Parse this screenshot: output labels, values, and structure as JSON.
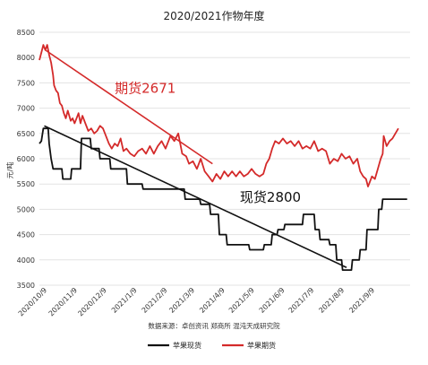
{
  "chart_data": {
    "type": "line",
    "title": "2020/2021作物年度",
    "ylabel": "元/吨",
    "ylim": [
      3500,
      8500
    ],
    "yticks": [
      3500,
      4000,
      4500,
      5000,
      5500,
      6000,
      6500,
      7000,
      7500,
      8000,
      8500
    ],
    "xlim": [
      "2020-10-01",
      "2021-10-15"
    ],
    "xticks": [
      "2020/10/9",
      "2020/11/9",
      "2020/12/9",
      "2021/1/9",
      "2021/2/9",
      "2021/3/9",
      "2021/4/9",
      "2021/5/9",
      "2021/6/9",
      "2021/7/9",
      "2021/8/9",
      "2021/9/9"
    ],
    "grid": "horizontal",
    "legend_position": "bottom",
    "series": [
      {
        "name": "苹果现货",
        "color": "#111111",
        "points": [
          [
            "2020-10-01",
            6300
          ],
          [
            "2020-10-03",
            6350
          ],
          [
            "2020-10-05",
            6600
          ],
          [
            "2020-10-10",
            6600
          ],
          [
            "2020-10-11",
            6300
          ],
          [
            "2020-10-13",
            6000
          ],
          [
            "2020-10-15",
            5800
          ],
          [
            "2020-10-24",
            5800
          ],
          [
            "2020-10-25",
            5600
          ],
          [
            "2020-11-02",
            5600
          ],
          [
            "2020-11-03",
            5800
          ],
          [
            "2020-11-12",
            5800
          ],
          [
            "2020-11-13",
            6400
          ],
          [
            "2020-11-22",
            6400
          ],
          [
            "2020-11-23",
            6200
          ],
          [
            "2020-12-01",
            6200
          ],
          [
            "2020-12-02",
            6000
          ],
          [
            "2020-12-12",
            6000
          ],
          [
            "2020-12-13",
            5800
          ],
          [
            "2020-12-29",
            5800
          ],
          [
            "2020-12-30",
            5500
          ],
          [
            "2021-01-14",
            5500
          ],
          [
            "2021-01-15",
            5400
          ],
          [
            "2021-02-26",
            5400
          ],
          [
            "2021-02-27",
            5200
          ],
          [
            "2021-03-14",
            5200
          ],
          [
            "2021-03-15",
            5100
          ],
          [
            "2021-03-24",
            5100
          ],
          [
            "2021-03-25",
            4900
          ],
          [
            "2021-04-02",
            4900
          ],
          [
            "2021-04-03",
            4500
          ],
          [
            "2021-04-10",
            4500
          ],
          [
            "2021-04-11",
            4300
          ],
          [
            "2021-05-03",
            4300
          ],
          [
            "2021-05-04",
            4200
          ],
          [
            "2021-05-18",
            4200
          ],
          [
            "2021-05-19",
            4300
          ],
          [
            "2021-05-26",
            4300
          ],
          [
            "2021-05-27",
            4500
          ],
          [
            "2021-06-01",
            4500
          ],
          [
            "2021-06-02",
            4600
          ],
          [
            "2021-06-08",
            4600
          ],
          [
            "2021-06-09",
            4700
          ],
          [
            "2021-06-27",
            4700
          ],
          [
            "2021-06-28",
            4900
          ],
          [
            "2021-07-09",
            4900
          ],
          [
            "2021-07-10",
            4600
          ],
          [
            "2021-07-14",
            4600
          ],
          [
            "2021-07-15",
            4400
          ],
          [
            "2021-07-24",
            4400
          ],
          [
            "2021-07-25",
            4300
          ],
          [
            "2021-07-31",
            4300
          ],
          [
            "2021-08-01",
            4000
          ],
          [
            "2021-08-06",
            4000
          ],
          [
            "2021-08-07",
            3800
          ],
          [
            "2021-08-16",
            3800
          ],
          [
            "2021-08-17",
            4000
          ],
          [
            "2021-08-24",
            4000
          ],
          [
            "2021-08-25",
            4200
          ],
          [
            "2021-08-31",
            4200
          ],
          [
            "2021-09-01",
            4600
          ],
          [
            "2021-09-12",
            4600
          ],
          [
            "2021-09-13",
            5000
          ],
          [
            "2021-09-16",
            5000
          ],
          [
            "2021-09-17",
            5200
          ],
          [
            "2021-10-12",
            5200
          ]
        ]
      },
      {
        "name": "苹果期货",
        "color": "#d42a2a",
        "points": [
          [
            "2020-10-01",
            7950
          ],
          [
            "2020-10-03",
            8100
          ],
          [
            "2020-10-05",
            8250
          ],
          [
            "2020-10-07",
            8150
          ],
          [
            "2020-10-09",
            8250
          ],
          [
            "2020-10-11",
            8050
          ],
          [
            "2020-10-13",
            7900
          ],
          [
            "2020-10-15",
            7650
          ],
          [
            "2020-10-16",
            7450
          ],
          [
            "2020-10-18",
            7350
          ],
          [
            "2020-10-20",
            7300
          ],
          [
            "2020-10-22",
            7100
          ],
          [
            "2020-10-24",
            7050
          ],
          [
            "2020-10-26",
            6900
          ],
          [
            "2020-10-28",
            6800
          ],
          [
            "2020-10-30",
            6950
          ],
          [
            "2020-11-02",
            6750
          ],
          [
            "2020-11-04",
            6800
          ],
          [
            "2020-11-06",
            6700
          ],
          [
            "2020-11-08",
            6800
          ],
          [
            "2020-11-10",
            6900
          ],
          [
            "2020-11-12",
            6700
          ],
          [
            "2020-11-14",
            6850
          ],
          [
            "2020-11-17",
            6700
          ],
          [
            "2020-11-20",
            6550
          ],
          [
            "2020-11-23",
            6600
          ],
          [
            "2020-11-26",
            6500
          ],
          [
            "2020-11-29",
            6550
          ],
          [
            "2020-12-02",
            6650
          ],
          [
            "2020-12-05",
            6600
          ],
          [
            "2020-12-08",
            6450
          ],
          [
            "2020-12-11",
            6300
          ],
          [
            "2020-12-14",
            6200
          ],
          [
            "2020-12-17",
            6300
          ],
          [
            "2020-12-20",
            6250
          ],
          [
            "2020-12-23",
            6400
          ],
          [
            "2020-12-26",
            6150
          ],
          [
            "2020-12-29",
            6200
          ],
          [
            "2021-01-02",
            6100
          ],
          [
            "2021-01-06",
            6050
          ],
          [
            "2021-01-10",
            6150
          ],
          [
            "2021-01-14",
            6200
          ],
          [
            "2021-01-18",
            6100
          ],
          [
            "2021-01-22",
            6250
          ],
          [
            "2021-01-26",
            6100
          ],
          [
            "2021-01-30",
            6250
          ],
          [
            "2021-02-03",
            6350
          ],
          [
            "2021-02-07",
            6200
          ],
          [
            "2021-02-12",
            6450
          ],
          [
            "2021-02-16",
            6350
          ],
          [
            "2021-02-20",
            6500
          ],
          [
            "2021-02-24",
            6100
          ],
          [
            "2021-02-28",
            6050
          ],
          [
            "2021-03-03",
            5900
          ],
          [
            "2021-03-07",
            5950
          ],
          [
            "2021-03-11",
            5800
          ],
          [
            "2021-03-15",
            6000
          ],
          [
            "2021-03-19",
            5750
          ],
          [
            "2021-03-23",
            5650
          ],
          [
            "2021-03-27",
            5550
          ],
          [
            "2021-03-31",
            5700
          ],
          [
            "2021-04-04",
            5600
          ],
          [
            "2021-04-08",
            5750
          ],
          [
            "2021-04-12",
            5650
          ],
          [
            "2021-04-16",
            5750
          ],
          [
            "2021-04-20",
            5650
          ],
          [
            "2021-04-24",
            5750
          ],
          [
            "2021-04-28",
            5650
          ],
          [
            "2021-05-02",
            5700
          ],
          [
            "2021-05-06",
            5800
          ],
          [
            "2021-05-10",
            5700
          ],
          [
            "2021-05-14",
            5650
          ],
          [
            "2021-05-18",
            5700
          ],
          [
            "2021-05-21",
            5900
          ],
          [
            "2021-05-24",
            6000
          ],
          [
            "2021-05-27",
            6200
          ],
          [
            "2021-05-30",
            6350
          ],
          [
            "2021-06-03",
            6300
          ],
          [
            "2021-06-07",
            6400
          ],
          [
            "2021-06-11",
            6300
          ],
          [
            "2021-06-15",
            6350
          ],
          [
            "2021-06-19",
            6250
          ],
          [
            "2021-06-23",
            6350
          ],
          [
            "2021-06-27",
            6200
          ],
          [
            "2021-07-01",
            6250
          ],
          [
            "2021-07-05",
            6200
          ],
          [
            "2021-07-09",
            6350
          ],
          [
            "2021-07-13",
            6150
          ],
          [
            "2021-07-17",
            6200
          ],
          [
            "2021-07-21",
            6150
          ],
          [
            "2021-07-25",
            5900
          ],
          [
            "2021-07-29",
            6000
          ],
          [
            "2021-08-02",
            5950
          ],
          [
            "2021-08-06",
            6100
          ],
          [
            "2021-08-10",
            6000
          ],
          [
            "2021-08-14",
            6050
          ],
          [
            "2021-08-18",
            5900
          ],
          [
            "2021-08-22",
            6000
          ],
          [
            "2021-08-25",
            5750
          ],
          [
            "2021-08-28",
            5650
          ],
          [
            "2021-08-31",
            5600
          ],
          [
            "2021-09-02",
            5450
          ],
          [
            "2021-09-04",
            5550
          ],
          [
            "2021-09-06",
            5650
          ],
          [
            "2021-09-09",
            5600
          ],
          [
            "2021-09-12",
            5800
          ],
          [
            "2021-09-15",
            6000
          ],
          [
            "2021-09-17",
            6100
          ],
          [
            "2021-09-18",
            6450
          ],
          [
            "2021-09-21",
            6250
          ],
          [
            "2021-09-24",
            6350
          ],
          [
            "2021-09-27",
            6400
          ],
          [
            "2021-09-30",
            6500
          ],
          [
            "2021-10-03",
            6600
          ]
        ]
      }
    ],
    "trendlines": [
      {
        "series": "苹果期货",
        "color": "#d42a2a",
        "from": [
          "2020-10-07",
          8150
        ],
        "to": [
          "2021-03-27",
          5900
        ]
      },
      {
        "series": "苹果现货",
        "color": "#111111",
        "from": [
          "2020-10-06",
          6650
        ],
        "to": [
          "2021-08-11",
          3850
        ]
      }
    ],
    "annotations": [
      {
        "text": "期货2671",
        "color": "#d42a2a",
        "x": "2020-12-17",
        "y": 7300
      },
      {
        "text": "现货2800",
        "color": "#111111",
        "x": "2021-04-24",
        "y": 5150
      }
    ],
    "source_note": "数据来源：卓创资讯 郑商所 混沌天成研究院"
  }
}
